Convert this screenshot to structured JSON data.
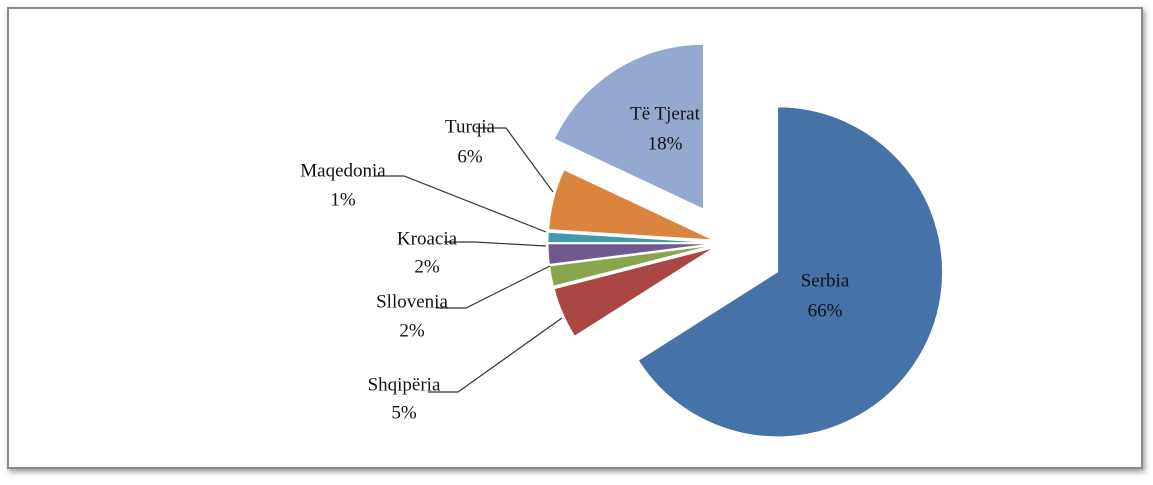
{
  "chart_data": {
    "type": "pie",
    "categories": [
      "Serbia",
      "Shqipëria",
      "Sllovenia",
      "Kroacia",
      "Maqedonia",
      "Turqia",
      "Të Tjerat"
    ],
    "values": [
      66,
      5,
      2,
      2,
      1,
      6,
      18
    ],
    "value_labels": [
      "66%",
      "5%",
      "2%",
      "2%",
      "1%",
      "6%",
      "18%"
    ],
    "colors": [
      "#4572a7",
      "#aa4643",
      "#89a54e",
      "#71588f",
      "#4198af",
      "#db843d",
      "#93a9cf"
    ]
  }
}
